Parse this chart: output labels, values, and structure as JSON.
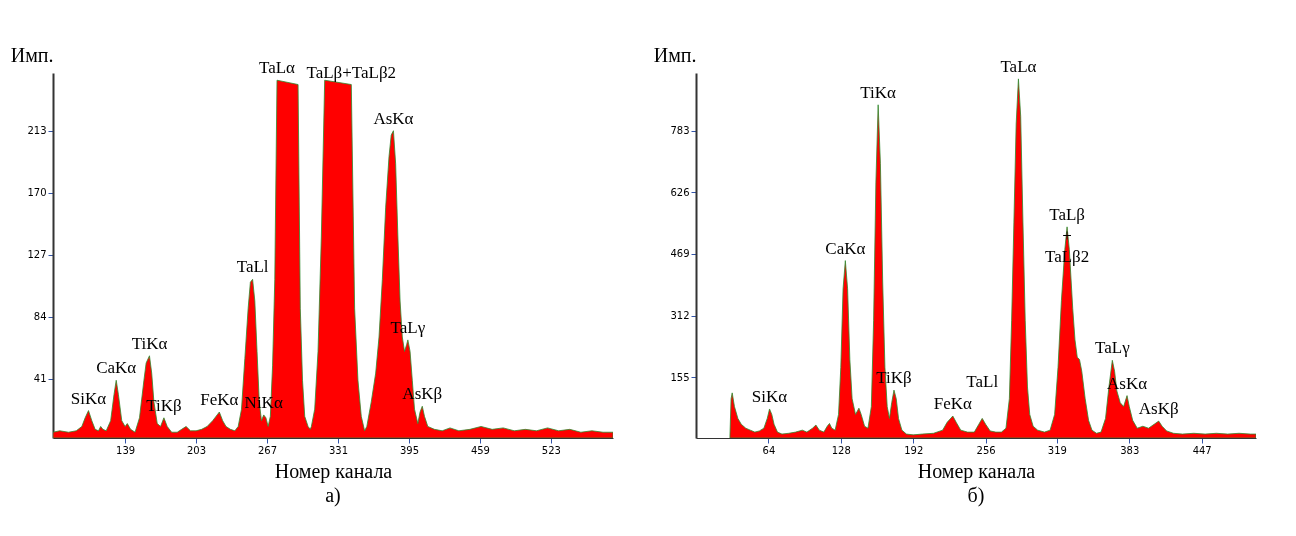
{
  "chart_data": [
    {
      "type": "area",
      "ylabel": "Имп.",
      "xlabel": "Номер канала",
      "xlim": [
        74,
        579
      ],
      "ylim": [
        0,
        253
      ],
      "xticks": [
        139,
        203,
        267,
        331,
        395,
        459,
        523
      ],
      "yticks": [
        41,
        84,
        127,
        170,
        213
      ],
      "grid": false,
      "x": [
        74,
        80,
        88,
        95,
        100,
        103,
        106,
        109,
        112,
        115,
        117,
        119,
        122,
        126,
        129,
        131,
        133,
        136,
        139,
        141,
        144,
        148,
        152,
        156,
        158,
        161,
        163,
        165,
        168,
        171,
        174,
        177,
        181,
        186,
        190,
        194,
        198,
        203,
        208,
        213,
        218,
        222,
        224,
        227,
        230,
        234,
        238,
        241,
        244,
        247,
        250,
        252,
        254,
        256,
        258,
        260,
        262,
        264,
        266,
        268,
        270,
        272,
        274,
        276,
        277,
        293,
        295,
        297,
        299,
        301,
        304,
        306,
        307,
        310,
        313,
        316,
        319,
        320,
        341,
        343,
        346,
        349,
        352,
        355,
        357,
        361,
        365,
        368,
        371,
        374,
        377,
        379,
        381,
        383,
        385,
        387,
        389,
        391,
        393,
        394,
        396,
        398,
        400,
        403,
        405,
        407,
        409,
        412,
        418,
        425,
        432,
        440,
        450,
        460,
        470,
        480,
        490,
        500,
        510,
        520,
        530,
        540,
        550,
        560,
        570,
        579
      ],
      "series": [
        {
          "color": "#ff0000",
          "values": [
            4,
            5,
            4,
            5,
            8,
            14,
            19,
            12,
            6,
            5,
            8,
            6,
            5,
            12,
            30,
            40,
            30,
            12,
            8,
            10,
            6,
            4,
            14,
            40,
            52,
            57,
            45,
            25,
            10,
            8,
            14,
            8,
            4,
            4,
            6,
            8,
            5,
            5,
            6,
            8,
            12,
            16,
            18,
            12,
            8,
            6,
            5,
            8,
            20,
            55,
            90,
            108,
            110,
            95,
            60,
            25,
            12,
            16,
            14,
            8,
            15,
            50,
            110,
            248,
            null,
            null,
            245,
            90,
            40,
            15,
            8,
            6,
            8,
            20,
            60,
            140,
            248,
            null,
            null,
            245,
            90,
            40,
            15,
            5,
            8,
            25,
            45,
            70,
            110,
            160,
            195,
            210,
            213,
            190,
            140,
            95,
            70,
            60,
            65,
            68,
            60,
            40,
            20,
            10,
            18,
            22,
            15,
            8,
            6,
            5,
            7,
            5,
            6,
            8,
            6,
            7,
            5,
            6,
            5,
            7,
            5,
            6,
            4,
            5,
            4,
            4
          ]
        }
      ],
      "annotations": [
        {
          "text": "SiKα",
          "x": 106,
          "y": 19
        },
        {
          "text": "CaKα",
          "x": 131,
          "y": 40
        },
        {
          "text": "TiKα",
          "x": 161,
          "y": 57
        },
        {
          "text": "TiKβ",
          "x": 174,
          "y": 14
        },
        {
          "text": "FeKα",
          "x": 224,
          "y": 18
        },
        {
          "text": "TaLl",
          "x": 254,
          "y": 110
        },
        {
          "text": "NiKα",
          "x": 264,
          "y": 16
        },
        {
          "text": "TaLα",
          "x": 276,
          "y": 248
        },
        {
          "text": "TaLβ+TaLβ2",
          "x": 343,
          "y": 245
        },
        {
          "text": "AsKα",
          "x": 381,
          "y": 213
        },
        {
          "text": "TaLγ",
          "x": 394,
          "y": 68
        },
        {
          "text": "AsKβ",
          "x": 407,
          "y": 22
        },
        "а)"
      ]
    },
    {
      "type": "area",
      "ylabel": "Имп.",
      "xlabel": "Номер канала",
      "xlim": [
        0,
        495
      ],
      "ylim": [
        0,
        930
      ],
      "xticks": [
        64,
        128,
        192,
        256,
        319,
        383,
        447
      ],
      "yticks": [
        155,
        312,
        469,
        626,
        783
      ],
      "grid": false,
      "x": [
        30,
        31,
        32,
        34,
        37,
        40,
        44,
        48,
        52,
        56,
        60,
        63,
        65,
        67,
        69,
        72,
        76,
        82,
        88,
        94,
        98,
        103,
        106,
        109,
        113,
        116,
        118,
        120,
        123,
        126,
        128,
        130,
        132,
        134,
        136,
        138,
        141,
        144,
        146,
        149,
        152,
        155,
        157,
        159,
        161,
        163,
        165,
        167,
        169,
        171,
        173,
        175,
        177,
        179,
        182,
        186,
        192,
        200,
        210,
        218,
        222,
        227,
        230,
        234,
        240,
        246,
        250,
        253,
        256,
        260,
        265,
        270,
        274,
        277,
        279,
        281,
        283,
        285,
        287,
        289,
        291,
        293,
        295,
        298,
        302,
        308,
        313,
        317,
        320,
        323,
        326,
        328,
        330,
        333,
        335,
        337,
        339,
        341,
        344,
        347,
        350,
        354,
        358,
        362,
        365,
        368,
        370,
        372,
        375,
        378,
        381,
        383,
        386,
        390,
        395,
        400,
        405,
        409,
        412,
        416,
        422,
        430,
        440,
        450,
        460,
        470,
        480,
        490,
        495
      ],
      "series": [
        {
          "color": "#ff0000",
          "values": [
            5,
            100,
            115,
            80,
            50,
            35,
            25,
            20,
            15,
            18,
            25,
            50,
            74,
            60,
            35,
            15,
            10,
            12,
            15,
            20,
            15,
            25,
            33,
            20,
            15,
            30,
            37,
            25,
            20,
            60,
            180,
            380,
            452,
            380,
            200,
            100,
            60,
            76,
            60,
            30,
            25,
            80,
            300,
            650,
            849,
            700,
            400,
            180,
            80,
            50,
            90,
            122,
            100,
            50,
            20,
            10,
            8,
            10,
            12,
            20,
            40,
            56,
            40,
            20,
            15,
            15,
            35,
            50,
            35,
            18,
            15,
            15,
            25,
            100,
            300,
            550,
            800,
            915,
            820,
            550,
            300,
            130,
            60,
            30,
            20,
            15,
            20,
            60,
            180,
            350,
            480,
            538,
            480,
            330,
            250,
            206,
            200,
            170,
            100,
            45,
            20,
            12,
            15,
            50,
            130,
            198,
            170,
            120,
            90,
            80,
            108,
            80,
            45,
            25,
            30,
            25,
            35,
            43,
            30,
            18,
            12,
            10,
            12,
            10,
            12,
            10,
            12,
            10,
            10
          ]
        }
      ],
      "annotations": [
        {
          "text": "SiKα",
          "x": 65,
          "y": 74
        },
        {
          "text": "CaKα",
          "x": 132,
          "y": 452
        },
        {
          "text": "TiKα",
          "x": 161,
          "y": 849
        },
        {
          "text": "TiKβ",
          "x": 175,
          "y": 122
        },
        {
          "text": "FeKα",
          "x": 227,
          "y": 56
        },
        {
          "text": "TaLl",
          "x": 253,
          "y": 50
        },
        {
          "text": "TaLα",
          "x": 285,
          "y": 915
        },
        {
          "text": "TaLβ\n+\nTaLβ2",
          "x": 328,
          "y": 538
        },
        {
          "text": "TaLγ",
          "x": 368,
          "y": 198
        },
        {
          "text": "AsKα",
          "x": 381,
          "y": 108
        },
        {
          "text": "AsKβ",
          "x": 409,
          "y": 43
        },
        "б)"
      ]
    }
  ]
}
